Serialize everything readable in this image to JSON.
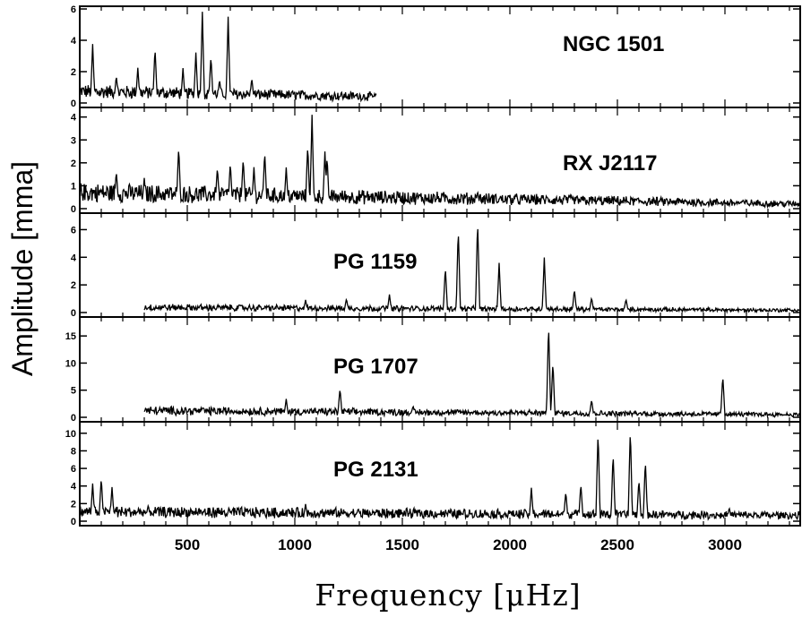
{
  "chart_data": {
    "type": "line",
    "title": "",
    "xlabel": "Frequency [μHz]",
    "ylabel": "Amplitude [mma]",
    "xlim": [
      0,
      3350
    ],
    "x_ticks": [
      500,
      1000,
      1500,
      2000,
      2500,
      3000
    ],
    "grid": false,
    "legend": "none",
    "line_color": "#000000",
    "panels": [
      {
        "name": "NGC 1501",
        "ylim": [
          0,
          6
        ],
        "y_ticks": [
          0,
          2,
          4,
          6
        ],
        "x_range": [
          0,
          1380
        ],
        "baseline": 0.9,
        "baseline_end": 0.5,
        "peaks": [
          [
            60,
            3.5
          ],
          [
            170,
            1.5
          ],
          [
            270,
            2.0
          ],
          [
            350,
            3.3
          ],
          [
            480,
            2.0
          ],
          [
            540,
            3.0
          ],
          [
            570,
            5.6
          ],
          [
            610,
            2.8
          ],
          [
            650,
            1.3
          ],
          [
            690,
            5.3
          ],
          [
            800,
            1.4
          ]
        ]
      },
      {
        "name": "RX J2117",
        "ylim": [
          0,
          4.3
        ],
        "y_ticks": [
          0,
          1,
          2,
          3,
          4
        ],
        "x_range": [
          0,
          3350
        ],
        "baseline": 0.85,
        "baseline_end": 0.25,
        "peaks": [
          [
            170,
            1.4
          ],
          [
            300,
            1.1
          ],
          [
            460,
            2.5
          ],
          [
            640,
            1.6
          ],
          [
            700,
            1.8
          ],
          [
            760,
            2.0
          ],
          [
            810,
            1.6
          ],
          [
            860,
            2.3
          ],
          [
            960,
            1.6
          ],
          [
            1060,
            2.6
          ],
          [
            1080,
            3.9
          ],
          [
            1140,
            2.3
          ],
          [
            1150,
            2.1
          ],
          [
            1850,
            0.6
          ]
        ]
      },
      {
        "name": "PG 1159",
        "ylim": [
          0,
          7
        ],
        "y_ticks": [
          0,
          2,
          4,
          6
        ],
        "x_range": [
          300,
          3350
        ],
        "baseline": 0.45,
        "baseline_end": 0.2,
        "peaks": [
          [
            1050,
            0.8
          ],
          [
            1240,
            0.9
          ],
          [
            1440,
            1.2
          ],
          [
            1700,
            3.2
          ],
          [
            1760,
            6.0
          ],
          [
            1850,
            6.6
          ],
          [
            1950,
            3.5
          ],
          [
            2160,
            3.9
          ],
          [
            2300,
            1.6
          ],
          [
            2380,
            1.0
          ],
          [
            2540,
            0.9
          ]
        ]
      },
      {
        "name": "PG 1707",
        "ylim": [
          0,
          18
        ],
        "y_ticks": [
          0,
          5,
          10,
          15
        ],
        "x_range": [
          300,
          3350
        ],
        "baseline": 1.5,
        "baseline_end": 0.6,
        "peaks": [
          [
            960,
            3.0
          ],
          [
            1210,
            5.0
          ],
          [
            1550,
            1.8
          ],
          [
            2180,
            17.0
          ],
          [
            2200,
            10.0
          ],
          [
            2380,
            3.0
          ],
          [
            2990,
            7.5
          ]
        ]
      },
      {
        "name": "PG 2131",
        "ylim": [
          0,
          11
        ],
        "y_ticks": [
          0,
          2,
          4,
          6,
          8,
          10
        ],
        "x_range": [
          0,
          3350
        ],
        "baseline": 1.3,
        "baseline_end": 0.8,
        "peaks": [
          [
            60,
            3.9
          ],
          [
            100,
            4.6
          ],
          [
            150,
            3.5
          ],
          [
            1050,
            1.6
          ],
          [
            2100,
            3.5
          ],
          [
            2260,
            3.1
          ],
          [
            2330,
            4.0
          ],
          [
            2410,
            10.0
          ],
          [
            2480,
            7.5
          ],
          [
            2560,
            10.3
          ],
          [
            2600,
            4.5
          ],
          [
            2630,
            6.7
          ],
          [
            3020,
            1.3
          ]
        ]
      }
    ]
  }
}
